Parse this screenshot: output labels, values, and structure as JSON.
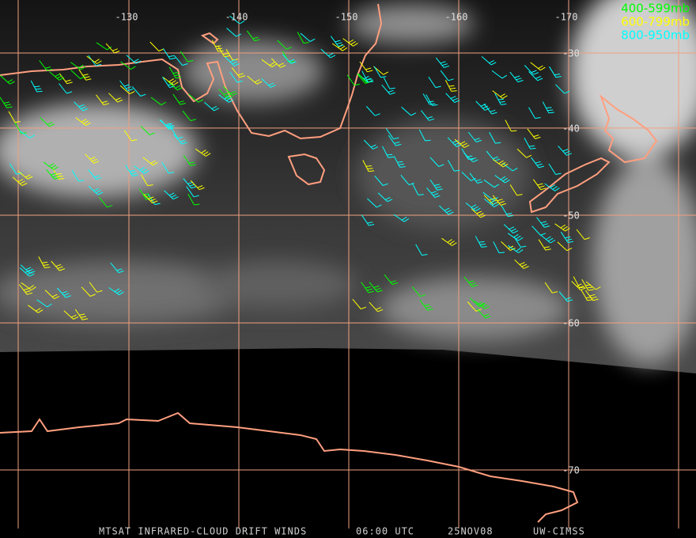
{
  "map": {
    "longitudes": [
      -130,
      -140,
      -150,
      -160,
      -170
    ],
    "latitudes": [
      -30,
      -40,
      -50,
      -60,
      -70
    ],
    "legend": [
      {
        "label": "400-599mb",
        "color": "#00ff00"
      },
      {
        "label": "600-799mb",
        "color": "#ffff00"
      },
      {
        "label": "800-950mb",
        "color": "#00ffff"
      }
    ],
    "footer": {
      "product": "MTSAT INFRARED-CLOUD DRIFT WINDS",
      "time": "06:00 UTC",
      "date": "25NOV08",
      "source": "UW-CIMSS"
    }
  }
}
